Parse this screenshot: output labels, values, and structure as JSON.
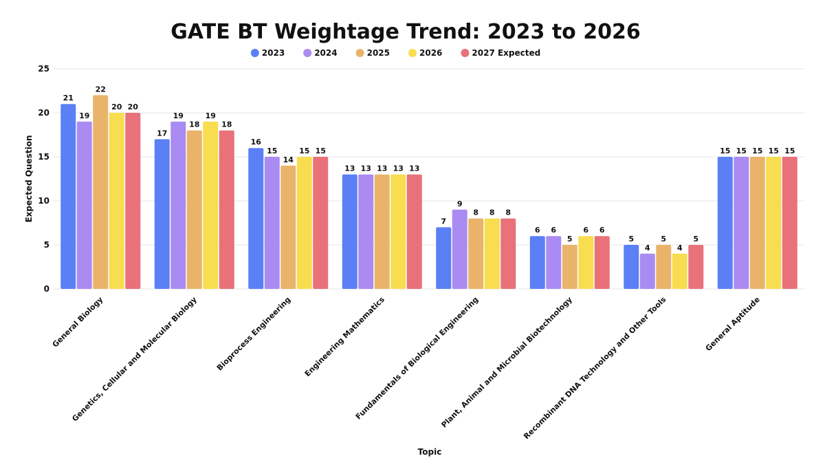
{
  "chart_data": {
    "type": "bar",
    "title": "GATE BT Weightage Trend: 2023 to 2026",
    "xlabel": "Topic",
    "ylabel": "Expected Question",
    "ylim": [
      0,
      25
    ],
    "yticks": [
      0,
      5,
      10,
      15,
      20,
      25
    ],
    "grid": true,
    "legend_position": "top-center",
    "categories": [
      "General Biology",
      "Genetics, Cellular and Molecular Biology",
      "Bioprocess Engineering",
      "Engineering Mathematics",
      "Fundamentals of Biological Engineering",
      "Plant, Animal and Microbial Biotechnology",
      "Recombinant DNA Technology and Other Tools",
      "General Aptitude"
    ],
    "series": [
      {
        "name": "2023",
        "color": "#5b7ff5",
        "values": [
          21,
          17,
          16,
          13,
          7,
          6,
          5,
          15
        ]
      },
      {
        "name": "2024",
        "color": "#a98bf2",
        "values": [
          19,
          19,
          15,
          13,
          9,
          6,
          4,
          15
        ]
      },
      {
        "name": "2025",
        "color": "#e9b46a",
        "values": [
          22,
          18,
          14,
          13,
          8,
          5,
          5,
          15
        ]
      },
      {
        "name": "2026",
        "color": "#f7dd4f",
        "values": [
          20,
          19,
          15,
          13,
          8,
          6,
          4,
          15
        ]
      },
      {
        "name": "2027 Expected",
        "color": "#e8717a",
        "values": [
          20,
          18,
          15,
          13,
          8,
          6,
          5,
          15
        ]
      }
    ]
  }
}
